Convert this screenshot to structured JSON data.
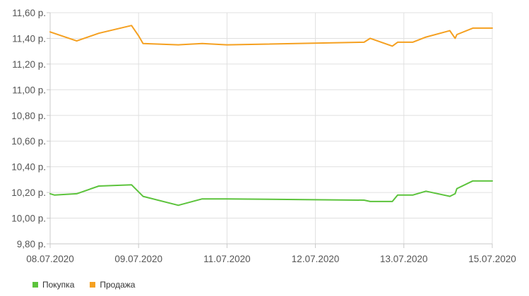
{
  "chart_data": {
    "type": "line",
    "title": "",
    "xlabel": "",
    "ylabel": "",
    "x_ticks": [
      "08.07.2020",
      "09.07.2020",
      "11.07.2020",
      "12.07.2020",
      "13.07.2020",
      "15.07.2020"
    ],
    "y_ticks": [
      "9,80 р.",
      "10,00 р.",
      "10,20 р.",
      "10,40 р.",
      "10,60 р.",
      "10,80 р.",
      "11,00 р.",
      "11,20 р.",
      "11,40 р.",
      "11,60 р."
    ],
    "ylim": [
      9.8,
      11.6
    ],
    "grid": true,
    "legend_position": "bottom-left",
    "series": [
      {
        "name": "Покупка",
        "color": "#5cc33c",
        "points": [
          [
            0,
            10.19
          ],
          [
            0.05,
            10.18
          ],
          [
            0.3,
            10.19
          ],
          [
            0.55,
            10.25
          ],
          [
            0.92,
            10.26
          ],
          [
            1.05,
            10.17
          ],
          [
            1.45,
            10.1
          ],
          [
            1.72,
            10.15
          ],
          [
            2.0,
            10.15
          ],
          [
            3.55,
            10.14
          ],
          [
            3.62,
            10.13
          ],
          [
            3.87,
            10.13
          ],
          [
            3.93,
            10.18
          ],
          [
            4.1,
            10.18
          ],
          [
            4.25,
            10.21
          ],
          [
            4.52,
            10.17
          ],
          [
            4.58,
            10.19
          ],
          [
            4.6,
            10.23
          ],
          [
            4.78,
            10.29
          ],
          [
            5.0,
            10.29
          ]
        ]
      },
      {
        "name": "Продажа",
        "color": "#f5a020",
        "points": [
          [
            0,
            11.45
          ],
          [
            0.3,
            11.38
          ],
          [
            0.55,
            11.44
          ],
          [
            0.92,
            11.5
          ],
          [
            1.0,
            11.42
          ],
          [
            1.05,
            11.36
          ],
          [
            1.45,
            11.35
          ],
          [
            1.72,
            11.36
          ],
          [
            2.0,
            11.35
          ],
          [
            3.55,
            11.37
          ],
          [
            3.62,
            11.4
          ],
          [
            3.87,
            11.34
          ],
          [
            3.93,
            11.37
          ],
          [
            4.1,
            11.37
          ],
          [
            4.25,
            11.41
          ],
          [
            4.52,
            11.46
          ],
          [
            4.58,
            11.4
          ],
          [
            4.6,
            11.43
          ],
          [
            4.78,
            11.48
          ],
          [
            5.0,
            11.48
          ]
        ]
      }
    ]
  }
}
